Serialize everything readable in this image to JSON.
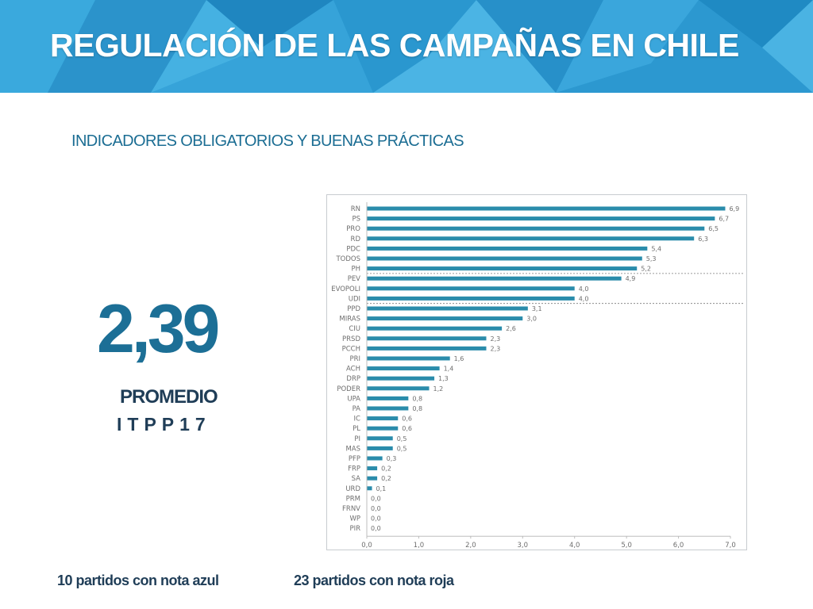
{
  "header": {
    "title": "REGULACIÓN DE LAS CAMPAÑAS EN CHILE"
  },
  "subtitle": "INDICADORES OBLIGATORIOS Y BUENAS PRÁCTICAS",
  "summary": {
    "value": "2,39",
    "label": "PROMEDIO",
    "index": "ITPP17"
  },
  "footnotes": {
    "blue": "10 partidos con nota azul",
    "red": "23 partidos con nota roja"
  },
  "colors": {
    "bar": "#2a8cab",
    "header": "#2f9fd6",
    "text_dark": "#1f3d57",
    "accent": "#1c6f96"
  },
  "chart_data": {
    "type": "bar",
    "orientation": "horizontal",
    "categories": [
      "RN",
      "PS",
      "PRO",
      "RD",
      "PDC",
      "TODOS",
      "PH",
      "PEV",
      "EVOPOLI",
      "UDI",
      "PPD",
      "MIRAS",
      "CIU",
      "PRSD",
      "PCCH",
      "PRI",
      "ACH",
      "DRP",
      "PODER",
      "UPA",
      "PA",
      "IC",
      "PL",
      "PI",
      "MAS",
      "PFP",
      "FRP",
      "SA",
      "URD",
      "PRM",
      "FRNV",
      "WP",
      "PIR"
    ],
    "values": [
      6.9,
      6.7,
      6.5,
      6.3,
      5.4,
      5.3,
      5.2,
      4.9,
      4.0,
      4.0,
      3.1,
      3.0,
      2.6,
      2.3,
      2.3,
      1.6,
      1.4,
      1.3,
      1.2,
      0.8,
      0.8,
      0.6,
      0.6,
      0.5,
      0.5,
      0.3,
      0.2,
      0.2,
      0.1,
      0.0,
      0.0,
      0.0,
      0.0
    ],
    "value_labels": [
      "6,9",
      "6,7",
      "6,5",
      "6,3",
      "5,4",
      "5,3",
      "5,2",
      "4,9",
      "4,0",
      "4,0",
      "3,1",
      "3,0",
      "2,6",
      "2,3",
      "2,3",
      "1,6",
      "1,4",
      "1,3",
      "1,2",
      "0,8",
      "0,8",
      "0,6",
      "0,6",
      "0,5",
      "0,5",
      "0,3",
      "0,2",
      "0,2",
      "0,1",
      "0,0",
      "0,0",
      "0,0",
      "0,0"
    ],
    "xlim": [
      0,
      7
    ],
    "x_ticks": [
      0,
      1,
      2,
      3,
      4,
      5,
      6,
      7
    ],
    "x_tick_labels": [
      "0,0",
      "1,0",
      "2,0",
      "3,0",
      "4,0",
      "5,0",
      "6,0",
      "7,0"
    ],
    "separator_after_categories": [
      "PH",
      "UDI"
    ],
    "grid": false,
    "title": "",
    "xlabel": "",
    "ylabel": ""
  }
}
